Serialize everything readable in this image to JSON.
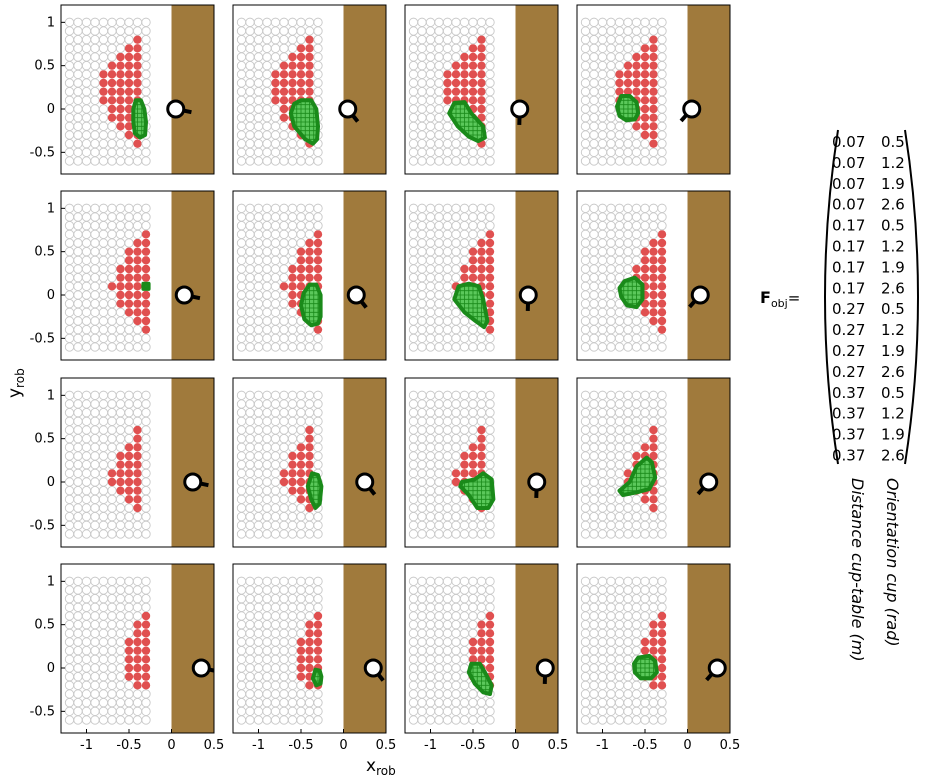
{
  "chart_data": {
    "type": "scatter",
    "layout": {
      "rows": 4,
      "cols": 4
    },
    "xlabel": "x",
    "xlabel_sub": "rob",
    "ylabel": "y",
    "ylabel_sub": "rob",
    "xlim": [
      -1.3,
      0.5
    ],
    "ylim": [
      -0.75,
      1.2
    ],
    "xticks": [
      -1,
      -0.5,
      0,
      0.5
    ],
    "xtick_labels": [
      "-1",
      "-0.5",
      "0",
      "0.5"
    ],
    "yticks": [
      1,
      0.5,
      0,
      -0.5
    ],
    "ytick_labels": [
      "1",
      "0.5",
      "0",
      "-0.5"
    ],
    "grid": false,
    "colors": {
      "table": "#a07a3c",
      "reachable": "#e05050",
      "unreachable": "#c8c8c8",
      "region_fill": "#5bc85b",
      "region_edge": "#1a8a1a",
      "cup": "#000000"
    },
    "table_x_start": 0.0,
    "grid_points": {
      "x_min": -1.2,
      "x_max": -0.3,
      "y_min": -0.6,
      "y_max": 1.0,
      "step": 0.1
    },
    "panels": [
      {
        "distance": 0.07,
        "orientation": 0.5,
        "reach_cols": [
          [
            -0.8,
            0.1,
            0.4
          ],
          [
            -0.7,
            -0.1,
            0.5
          ],
          [
            -0.6,
            -0.2,
            0.6
          ],
          [
            -0.5,
            -0.3,
            0.7
          ],
          [
            -0.4,
            -0.4,
            0.8
          ]
        ],
        "region": [
          [
            -0.42,
            0.1
          ],
          [
            -0.36,
            0.1
          ],
          [
            -0.32,
            0.0
          ],
          [
            -0.3,
            -0.15
          ],
          [
            -0.31,
            -0.3
          ],
          [
            -0.37,
            -0.33
          ],
          [
            -0.43,
            -0.28
          ],
          [
            -0.45,
            -0.15
          ],
          [
            -0.45,
            0.0
          ]
        ],
        "cup": [
          0.05,
          0.0,
          0.5
        ]
      },
      {
        "distance": 0.07,
        "orientation": 1.2,
        "reach_cols": [
          [
            -0.8,
            0.1,
            0.4
          ],
          [
            -0.7,
            -0.1,
            0.5
          ],
          [
            -0.6,
            -0.2,
            0.6
          ],
          [
            -0.5,
            -0.3,
            0.7
          ],
          [
            -0.4,
            -0.4,
            0.8
          ]
        ],
        "region": [
          [
            -0.5,
            0.1
          ],
          [
            -0.38,
            0.1
          ],
          [
            -0.32,
            0.0
          ],
          [
            -0.3,
            -0.2
          ],
          [
            -0.31,
            -0.35
          ],
          [
            -0.36,
            -0.4
          ],
          [
            -0.45,
            -0.35
          ],
          [
            -0.58,
            -0.2
          ],
          [
            -0.62,
            -0.05
          ],
          [
            -0.58,
            0.06
          ]
        ],
        "cup": [
          0.05,
          0.0,
          1.2
        ]
      },
      {
        "distance": 0.07,
        "orientation": 1.9,
        "reach_cols": [
          [
            -0.8,
            0.1,
            0.4
          ],
          [
            -0.7,
            -0.1,
            0.5
          ],
          [
            -0.6,
            -0.2,
            0.6
          ],
          [
            -0.5,
            -0.3,
            0.7
          ],
          [
            -0.4,
            -0.4,
            0.8
          ]
        ],
        "region": [
          [
            -0.72,
            0.07
          ],
          [
            -0.6,
            0.08
          ],
          [
            -0.52,
            -0.05
          ],
          [
            -0.38,
            -0.2
          ],
          [
            -0.36,
            -0.33
          ],
          [
            -0.44,
            -0.37
          ],
          [
            -0.55,
            -0.32
          ],
          [
            -0.68,
            -0.2
          ],
          [
            -0.78,
            -0.05
          ]
        ],
        "cup": [
          0.05,
          0.0,
          1.9
        ]
      },
      {
        "distance": 0.07,
        "orientation": 2.6,
        "reach_cols": [
          [
            -0.8,
            0.1,
            0.4
          ],
          [
            -0.7,
            -0.1,
            0.5
          ],
          [
            -0.6,
            -0.2,
            0.6
          ],
          [
            -0.5,
            -0.3,
            0.7
          ],
          [
            -0.4,
            -0.4,
            0.8
          ]
        ],
        "region": [
          [
            -0.78,
            0.15
          ],
          [
            -0.68,
            0.15
          ],
          [
            -0.6,
            0.08
          ],
          [
            -0.58,
            -0.05
          ],
          [
            -0.62,
            -0.12
          ],
          [
            -0.72,
            -0.13
          ],
          [
            -0.8,
            -0.08
          ],
          [
            -0.83,
            0.03
          ]
        ],
        "cup": [
          0.05,
          0.0,
          2.6
        ]
      },
      {
        "distance": 0.17,
        "orientation": 0.5,
        "reach_cols": [
          [
            -0.7,
            0.1,
            0.1
          ],
          [
            -0.6,
            -0.1,
            0.3
          ],
          [
            -0.5,
            -0.2,
            0.5
          ],
          [
            -0.4,
            -0.3,
            0.6
          ],
          [
            -0.3,
            -0.4,
            0.7
          ]
        ],
        "region": [
          [
            -0.33,
            0.13
          ],
          [
            -0.27,
            0.13
          ],
          [
            -0.27,
            0.07
          ],
          [
            -0.33,
            0.07
          ]
        ],
        "cup": [
          0.15,
          0.0,
          0.5
        ]
      },
      {
        "distance": 0.17,
        "orientation": 1.2,
        "reach_cols": [
          [
            -0.7,
            0.1,
            0.1
          ],
          [
            -0.6,
            -0.1,
            0.3
          ],
          [
            -0.5,
            -0.2,
            0.5
          ],
          [
            -0.4,
            -0.3,
            0.6
          ],
          [
            -0.3,
            -0.4,
            0.7
          ]
        ],
        "region": [
          [
            -0.4,
            0.12
          ],
          [
            -0.32,
            0.12
          ],
          [
            -0.27,
            0.0
          ],
          [
            -0.27,
            -0.25
          ],
          [
            -0.3,
            -0.33
          ],
          [
            -0.38,
            -0.35
          ],
          [
            -0.46,
            -0.28
          ],
          [
            -0.5,
            -0.12
          ],
          [
            -0.47,
            0.02
          ]
        ],
        "cup": [
          0.15,
          0.0,
          1.2
        ]
      },
      {
        "distance": 0.17,
        "orientation": 1.9,
        "reach_cols": [
          [
            -0.7,
            0.1,
            0.1
          ],
          [
            -0.6,
            -0.1,
            0.3
          ],
          [
            -0.5,
            -0.2,
            0.5
          ],
          [
            -0.4,
            -0.3,
            0.6
          ],
          [
            -0.3,
            -0.4,
            0.7
          ]
        ],
        "region": [
          [
            -0.67,
            0.1
          ],
          [
            -0.55,
            0.13
          ],
          [
            -0.43,
            0.1
          ],
          [
            -0.38,
            -0.05
          ],
          [
            -0.33,
            -0.3
          ],
          [
            -0.37,
            -0.37
          ],
          [
            -0.47,
            -0.3
          ],
          [
            -0.6,
            -0.2
          ],
          [
            -0.72,
            -0.05
          ]
        ],
        "cup": [
          0.15,
          0.0,
          1.9
        ]
      },
      {
        "distance": 0.17,
        "orientation": 2.6,
        "reach_cols": [
          [
            -0.7,
            0.1,
            0.1
          ],
          [
            -0.6,
            -0.1,
            0.3
          ],
          [
            -0.5,
            -0.2,
            0.5
          ],
          [
            -0.4,
            -0.3,
            0.6
          ],
          [
            -0.3,
            -0.4,
            0.7
          ]
        ],
        "region": [
          [
            -0.74,
            0.16
          ],
          [
            -0.62,
            0.2
          ],
          [
            -0.53,
            0.12
          ],
          [
            -0.53,
            -0.05
          ],
          [
            -0.6,
            -0.14
          ],
          [
            -0.71,
            -0.12
          ],
          [
            -0.78,
            -0.02
          ],
          [
            -0.8,
            0.08
          ]
        ],
        "cup": [
          0.15,
          0.0,
          2.6
        ]
      },
      {
        "distance": 0.27,
        "orientation": 0.5,
        "reach_cols": [
          [
            -0.7,
            0.0,
            0.1
          ],
          [
            -0.6,
            -0.1,
            0.3
          ],
          [
            -0.5,
            -0.2,
            0.4
          ],
          [
            -0.4,
            -0.3,
            0.6
          ]
        ],
        "region": [],
        "cup": [
          0.25,
          0.0,
          0.5
        ]
      },
      {
        "distance": 0.27,
        "orientation": 1.2,
        "reach_cols": [
          [
            -0.7,
            0.0,
            0.1
          ],
          [
            -0.6,
            -0.1,
            0.3
          ],
          [
            -0.5,
            -0.2,
            0.4
          ],
          [
            -0.4,
            -0.3,
            0.6
          ]
        ],
        "region": [
          [
            -0.37,
            0.1
          ],
          [
            -0.3,
            0.08
          ],
          [
            -0.26,
            -0.05
          ],
          [
            -0.28,
            -0.25
          ],
          [
            -0.33,
            -0.3
          ],
          [
            -0.38,
            -0.2
          ],
          [
            -0.42,
            -0.05
          ]
        ],
        "cup": [
          0.25,
          0.0,
          1.2
        ]
      },
      {
        "distance": 0.27,
        "orientation": 1.9,
        "reach_cols": [
          [
            -0.7,
            0.0,
            0.1
          ],
          [
            -0.6,
            -0.1,
            0.3
          ],
          [
            -0.5,
            -0.2,
            0.4
          ],
          [
            -0.4,
            -0.3,
            0.6
          ]
        ],
        "region": [
          [
            -0.63,
            0.0
          ],
          [
            -0.48,
            0.03
          ],
          [
            -0.38,
            0.1
          ],
          [
            -0.28,
            0.03
          ],
          [
            -0.26,
            -0.2
          ],
          [
            -0.32,
            -0.3
          ],
          [
            -0.45,
            -0.3
          ],
          [
            -0.55,
            -0.15
          ],
          [
            -0.65,
            -0.05
          ]
        ],
        "cup": [
          0.25,
          0.0,
          1.9
        ]
      },
      {
        "distance": 0.27,
        "orientation": 2.6,
        "reach_cols": [
          [
            -0.7,
            0.0,
            0.1
          ],
          [
            -0.6,
            -0.1,
            0.3
          ],
          [
            -0.5,
            -0.2,
            0.4
          ],
          [
            -0.4,
            -0.3,
            0.6
          ]
        ],
        "region": [
          [
            -0.8,
            -0.1
          ],
          [
            -0.68,
            0.0
          ],
          [
            -0.6,
            0.18
          ],
          [
            -0.48,
            0.28
          ],
          [
            -0.42,
            0.23
          ],
          [
            -0.38,
            0.05
          ],
          [
            -0.45,
            -0.08
          ],
          [
            -0.6,
            -0.12
          ],
          [
            -0.76,
            -0.15
          ]
        ],
        "cup": [
          0.25,
          0.0,
          2.6
        ]
      },
      {
        "distance": 0.37,
        "orientation": 0.5,
        "reach_cols": [
          [
            -0.5,
            -0.1,
            0.3
          ],
          [
            -0.4,
            -0.2,
            0.5
          ],
          [
            -0.3,
            -0.2,
            0.6
          ]
        ],
        "region": [],
        "cup": [
          0.35,
          0.0,
          0.5
        ]
      },
      {
        "distance": 0.37,
        "orientation": 1.2,
        "reach_cols": [
          [
            -0.5,
            -0.1,
            0.3
          ],
          [
            -0.4,
            -0.2,
            0.5
          ],
          [
            -0.3,
            -0.2,
            0.6
          ]
        ],
        "region": [
          [
            -0.33,
            -0.02
          ],
          [
            -0.28,
            -0.03
          ],
          [
            -0.26,
            -0.1
          ],
          [
            -0.27,
            -0.18
          ],
          [
            -0.32,
            -0.2
          ],
          [
            -0.36,
            -0.12
          ]
        ],
        "cup": [
          0.35,
          0.0,
          1.2
        ]
      },
      {
        "distance": 0.37,
        "orientation": 1.9,
        "reach_cols": [
          [
            -0.5,
            -0.1,
            0.3
          ],
          [
            -0.4,
            -0.2,
            0.5
          ],
          [
            -0.3,
            -0.2,
            0.6
          ]
        ],
        "region": [
          [
            -0.52,
            0.05
          ],
          [
            -0.42,
            0.05
          ],
          [
            -0.36,
            -0.05
          ],
          [
            -0.28,
            -0.2
          ],
          [
            -0.3,
            -0.3
          ],
          [
            -0.38,
            -0.28
          ],
          [
            -0.48,
            -0.18
          ],
          [
            -0.55,
            -0.05
          ]
        ],
        "cup": [
          0.35,
          0.0,
          1.9
        ]
      },
      {
        "distance": 0.37,
        "orientation": 2.6,
        "reach_cols": [
          [
            -0.5,
            -0.1,
            0.3
          ],
          [
            -0.4,
            -0.2,
            0.5
          ],
          [
            -0.3,
            -0.2,
            0.6
          ]
        ],
        "region": [
          [
            -0.58,
            0.12
          ],
          [
            -0.45,
            0.14
          ],
          [
            -0.38,
            0.08
          ],
          [
            -0.36,
            -0.05
          ],
          [
            -0.43,
            -0.12
          ],
          [
            -0.55,
            -0.12
          ],
          [
            -0.62,
            -0.05
          ],
          [
            -0.63,
            0.05
          ]
        ],
        "cup": [
          0.35,
          0.0,
          2.6
        ]
      }
    ],
    "matrix": {
      "label": "F",
      "label_sub": "obj",
      "equals": "=",
      "rows": [
        [
          "0.07",
          "0.5"
        ],
        [
          "0.07",
          "1.2"
        ],
        [
          "0.07",
          "1.9"
        ],
        [
          "0.07",
          "2.6"
        ],
        [
          "0.17",
          "0.5"
        ],
        [
          "0.17",
          "1.2"
        ],
        [
          "0.17",
          "1.9"
        ],
        [
          "0.17",
          "2.6"
        ],
        [
          "0.27",
          "0.5"
        ],
        [
          "0.27",
          "1.2"
        ],
        [
          "0.27",
          "1.9"
        ],
        [
          "0.27",
          "2.6"
        ],
        [
          "0.37",
          "0.5"
        ],
        [
          "0.37",
          "1.2"
        ],
        [
          "0.37",
          "1.9"
        ],
        [
          "0.37",
          "2.6"
        ]
      ],
      "col_labels": [
        "Distance cup-table (m)",
        "Orientation cup (rad)"
      ]
    }
  }
}
